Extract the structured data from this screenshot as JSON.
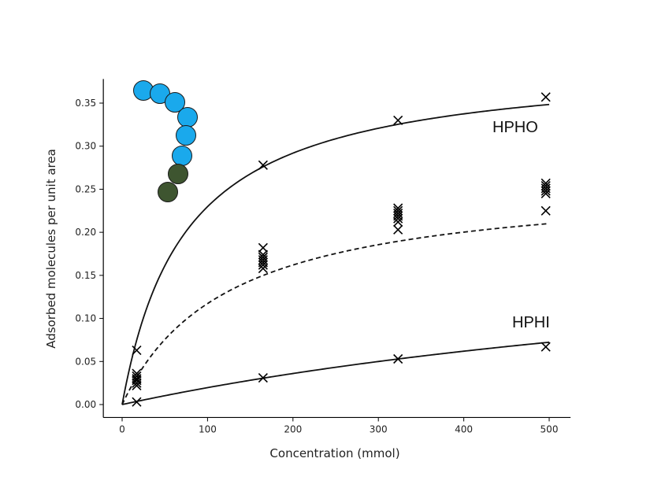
{
  "chart_data": {
    "type": "scatter",
    "title": "",
    "xlabel": "Concentration (mmol)",
    "ylabel": "Adsorbed molecules per unit area",
    "xlim": [
      -22,
      525
    ],
    "ylim": [
      -0.015,
      0.378
    ],
    "x_ticks": [
      0,
      100,
      200,
      300,
      400,
      500
    ],
    "y_ticks": [
      0.0,
      0.05,
      0.1,
      0.15,
      0.2,
      0.25,
      0.3,
      0.35
    ],
    "x_tick_labels": [
      "0",
      "100",
      "200",
      "300",
      "400",
      "500"
    ],
    "y_tick_labels": [
      "0.00",
      "0.05",
      "0.10",
      "0.15",
      "0.20",
      "0.25",
      "0.30",
      "0.35"
    ],
    "grid": false,
    "marker": "x",
    "annotations": [
      "HPHO",
      "HPHI"
    ],
    "series": [
      {
        "name": "HPHO",
        "marker": "x",
        "points": [
          [
            17,
            0.063
          ],
          [
            165,
            0.278
          ],
          [
            323,
            0.33
          ],
          [
            496,
            0.357
          ]
        ],
        "fit": {
          "style": "solid",
          "model": "langmuir",
          "qmax": 0.4,
          "K": 0.0135
        }
      },
      {
        "marker": "x",
        "points": [
          [
            17,
            0.022
          ],
          [
            17,
            0.025
          ],
          [
            17,
            0.028
          ],
          [
            17,
            0.03
          ],
          [
            17,
            0.033
          ],
          [
            17,
            0.036
          ],
          [
            165,
            0.158
          ],
          [
            165,
            0.162
          ],
          [
            165,
            0.165
          ],
          [
            165,
            0.168
          ],
          [
            165,
            0.171
          ],
          [
            165,
            0.174
          ],
          [
            165,
            0.182
          ],
          [
            323,
            0.203
          ],
          [
            323,
            0.212
          ],
          [
            323,
            0.216
          ],
          [
            323,
            0.219
          ],
          [
            323,
            0.222
          ],
          [
            323,
            0.225
          ],
          [
            323,
            0.228
          ],
          [
            496,
            0.225
          ],
          [
            496,
            0.245
          ],
          [
            496,
            0.248
          ],
          [
            496,
            0.251
          ],
          [
            496,
            0.254
          ],
          [
            496,
            0.257
          ]
        ],
        "fit": {
          "style": "dashed",
          "model": "langmuir",
          "qmax": 0.262,
          "K": 0.0081
        }
      },
      {
        "name": "HPHI",
        "marker": "x",
        "points": [
          [
            17,
            0.003
          ],
          [
            165,
            0.031
          ],
          [
            323,
            0.053
          ],
          [
            496,
            0.067
          ]
        ],
        "fit": {
          "style": "solid",
          "model": "langmuir",
          "qmax": 0.22,
          "K": 0.00098
        }
      }
    ]
  },
  "molecule": {
    "colors": {
      "hydrophobic": "#1aa9ec",
      "hydrophilic": "#3e5530",
      "outline": "#1a1a1a"
    },
    "beads": [
      {
        "type": "hydrophobic"
      },
      {
        "type": "hydrophobic"
      },
      {
        "type": "hydrophobic"
      },
      {
        "type": "hydrophobic"
      },
      {
        "type": "hydrophobic"
      },
      {
        "type": "hydrophobic"
      },
      {
        "type": "hydrophilic"
      },
      {
        "type": "hydrophilic"
      }
    ]
  }
}
